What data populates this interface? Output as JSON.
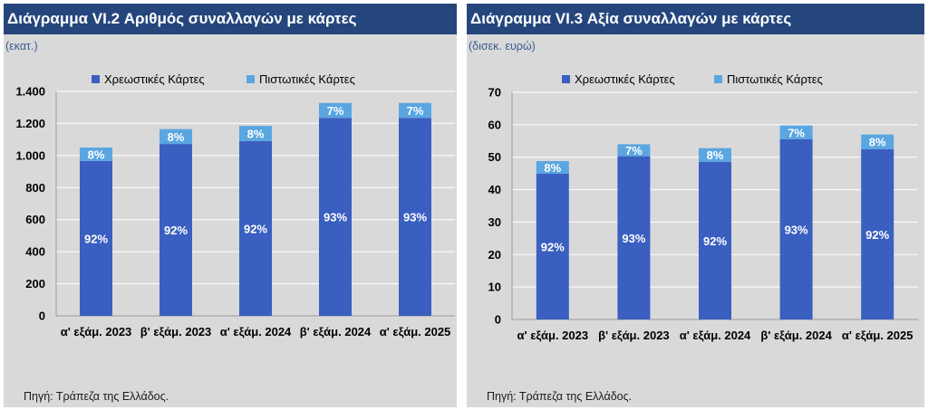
{
  "colors": {
    "header_bg": "#25467d",
    "debit": "#3a5fc0",
    "credit": "#5aa6e0",
    "panel_bg": "#d9d9d9"
  },
  "left_panel": {
    "title": "Διάγραμμα VI.2 Αριθμός συναλλαγών με κάρτες",
    "unit": "(εκατ.)",
    "source": "Πηγή: Τράπεζα της Ελλάδος."
  },
  "right_panel": {
    "title": "Διάγραμμα VI.3 Αξία συναλλαγών με κάρτες",
    "unit": "(δισεκ. ευρώ)",
    "source": "Πηγή: Τράπεζα της Ελλάδος."
  },
  "chart_data": [
    {
      "type": "bar",
      "stacked": true,
      "title": "Διάγραμμα VI.2 Αριθμός συναλλαγών με κάρτες",
      "ylabel": "(εκατ.)",
      "xlabel": "",
      "categories": [
        "α' εξάμ. 2023",
        "β' εξάμ. 2023",
        "α' εξάμ. 2024",
        "β' εξάμ. 2024",
        "α' εξάμ. 2025"
      ],
      "ylim": [
        0,
        1400
      ],
      "yticks": [
        0,
        200,
        400,
        600,
        800,
        1000,
        1200,
        1400
      ],
      "ytick_labels": [
        "0",
        "200",
        "400",
        "600",
        "800",
        "1.000",
        "1.200",
        "1.400"
      ],
      "legend_position": "top",
      "series": [
        {
          "name": "Χρεωστικές Κάρτες",
          "values": [
            966,
            1072,
            1090,
            1235,
            1235
          ],
          "labels": [
            "92%",
            "92%",
            "92%",
            "93%",
            "93%"
          ]
        },
        {
          "name": "Πιστωτικές Κάρτες",
          "values": [
            84,
            93,
            95,
            93,
            93
          ],
          "labels": [
            "8%",
            "8%",
            "8%",
            "7%",
            "7%"
          ]
        }
      ]
    },
    {
      "type": "bar",
      "stacked": true,
      "title": "Διάγραμμα VI.3 Αξία συναλλαγών με κάρτες",
      "ylabel": "(δισεκ. ευρώ)",
      "xlabel": "",
      "categories": [
        "α' εξάμ. 2023",
        "β' εξάμ. 2023",
        "α' εξάμ. 2024",
        "β' εξάμ. 2024",
        "α' εξάμ. 2025"
      ],
      "ylim": [
        0,
        70
      ],
      "yticks": [
        0,
        10,
        20,
        30,
        40,
        50,
        60,
        70
      ],
      "ytick_labels": [
        "0",
        "10",
        "20",
        "30",
        "40",
        "50",
        "60",
        "70"
      ],
      "legend_position": "top",
      "series": [
        {
          "name": "Χρεωστικές Κάρτες",
          "values": [
            44.9,
            50.3,
            48.6,
            55.5,
            52.5
          ],
          "labels": [
            "92%",
            "93%",
            "92%",
            "93%",
            "92%"
          ]
        },
        {
          "name": "Πιστωτικές Κάρτες",
          "values": [
            3.9,
            3.7,
            4.2,
            4.3,
            4.5
          ],
          "labels": [
            "8%",
            "7%",
            "8%",
            "7%",
            "8%"
          ]
        }
      ]
    }
  ]
}
